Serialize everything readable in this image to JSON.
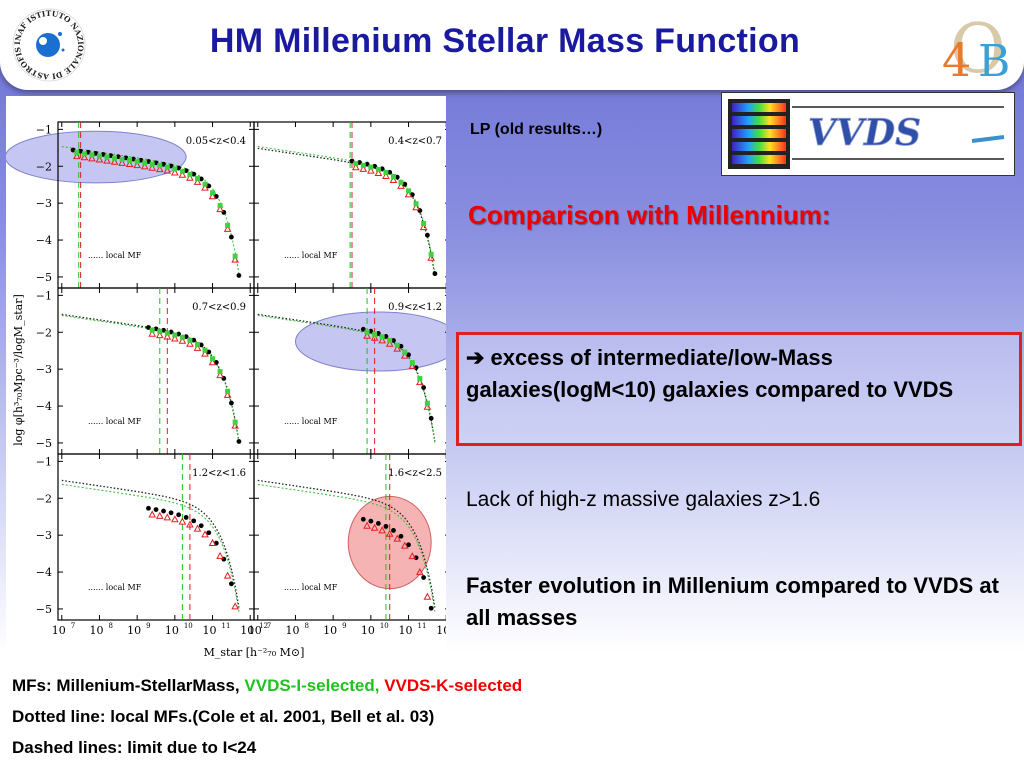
{
  "header": {
    "title": "HM Millenium Stellar Mass Function",
    "inaf_logo_text": "INAF ISTITUTO NAZIONALE DI ASTROFISICA",
    "logo_4b": {
      "o": "O",
      "four": "4",
      "b": "B"
    }
  },
  "figure": {
    "panels": [
      {
        "label": "0.05<z<0.4",
        "local": "local MF"
      },
      {
        "label": "0.4<z<0.7",
        "local": "local MF"
      },
      {
        "label": "0.7<z<0.9",
        "local": "local MF"
      },
      {
        "label": "0.9<z<1.2",
        "local": "local MF"
      },
      {
        "label": "1.2<z<1.6",
        "local": "local MF"
      },
      {
        "label": "1.6<z<2.5",
        "local": "local MF"
      }
    ],
    "y_ticks": [
      "−1",
      "−2",
      "−3",
      "−4",
      "−5"
    ],
    "x_ticks": [
      "10",
      "10",
      "10",
      "10",
      "10",
      "10"
    ],
    "x_exps": [
      "7",
      "8",
      "9",
      "10",
      "11",
      "12"
    ],
    "ylabel": "log φ[h³₇₀Mpc⁻³/logM_star]",
    "xlabel": "M_star [h⁻²₇₀ M⊙]"
  },
  "vvds_logo_text": "VVDS",
  "lp_note": "LP (old results…)",
  "comparison_title": "Comparison with Millennium:",
  "excess_text": "➔ excess of intermediate/low-Mass galaxies(logM<10) galaxies compared to VVDS",
  "lack_text": "Lack of high-z massive galaxies z>1.6",
  "faster_text": "Faster evolution in Millenium compared to VVDS at all masses",
  "bottom": {
    "line1_prefix": "MFs: Millenium-StellarMass, ",
    "line1_green": "VVDS-I-selected, ",
    "line1_red": "VVDS-K-selected",
    "line2": "Dotted line: local MFs.(Cole et al. 2001, Bell et al. 03)",
    "line3": "Dashed lines: limit due to I<24"
  },
  "colors": {
    "title": "#1a1aa0",
    "accent_red": "#e00000",
    "green": "#1fc21f",
    "highlight_blue": "#b8b8f0",
    "highlight_red": "#f4a0a0"
  }
}
